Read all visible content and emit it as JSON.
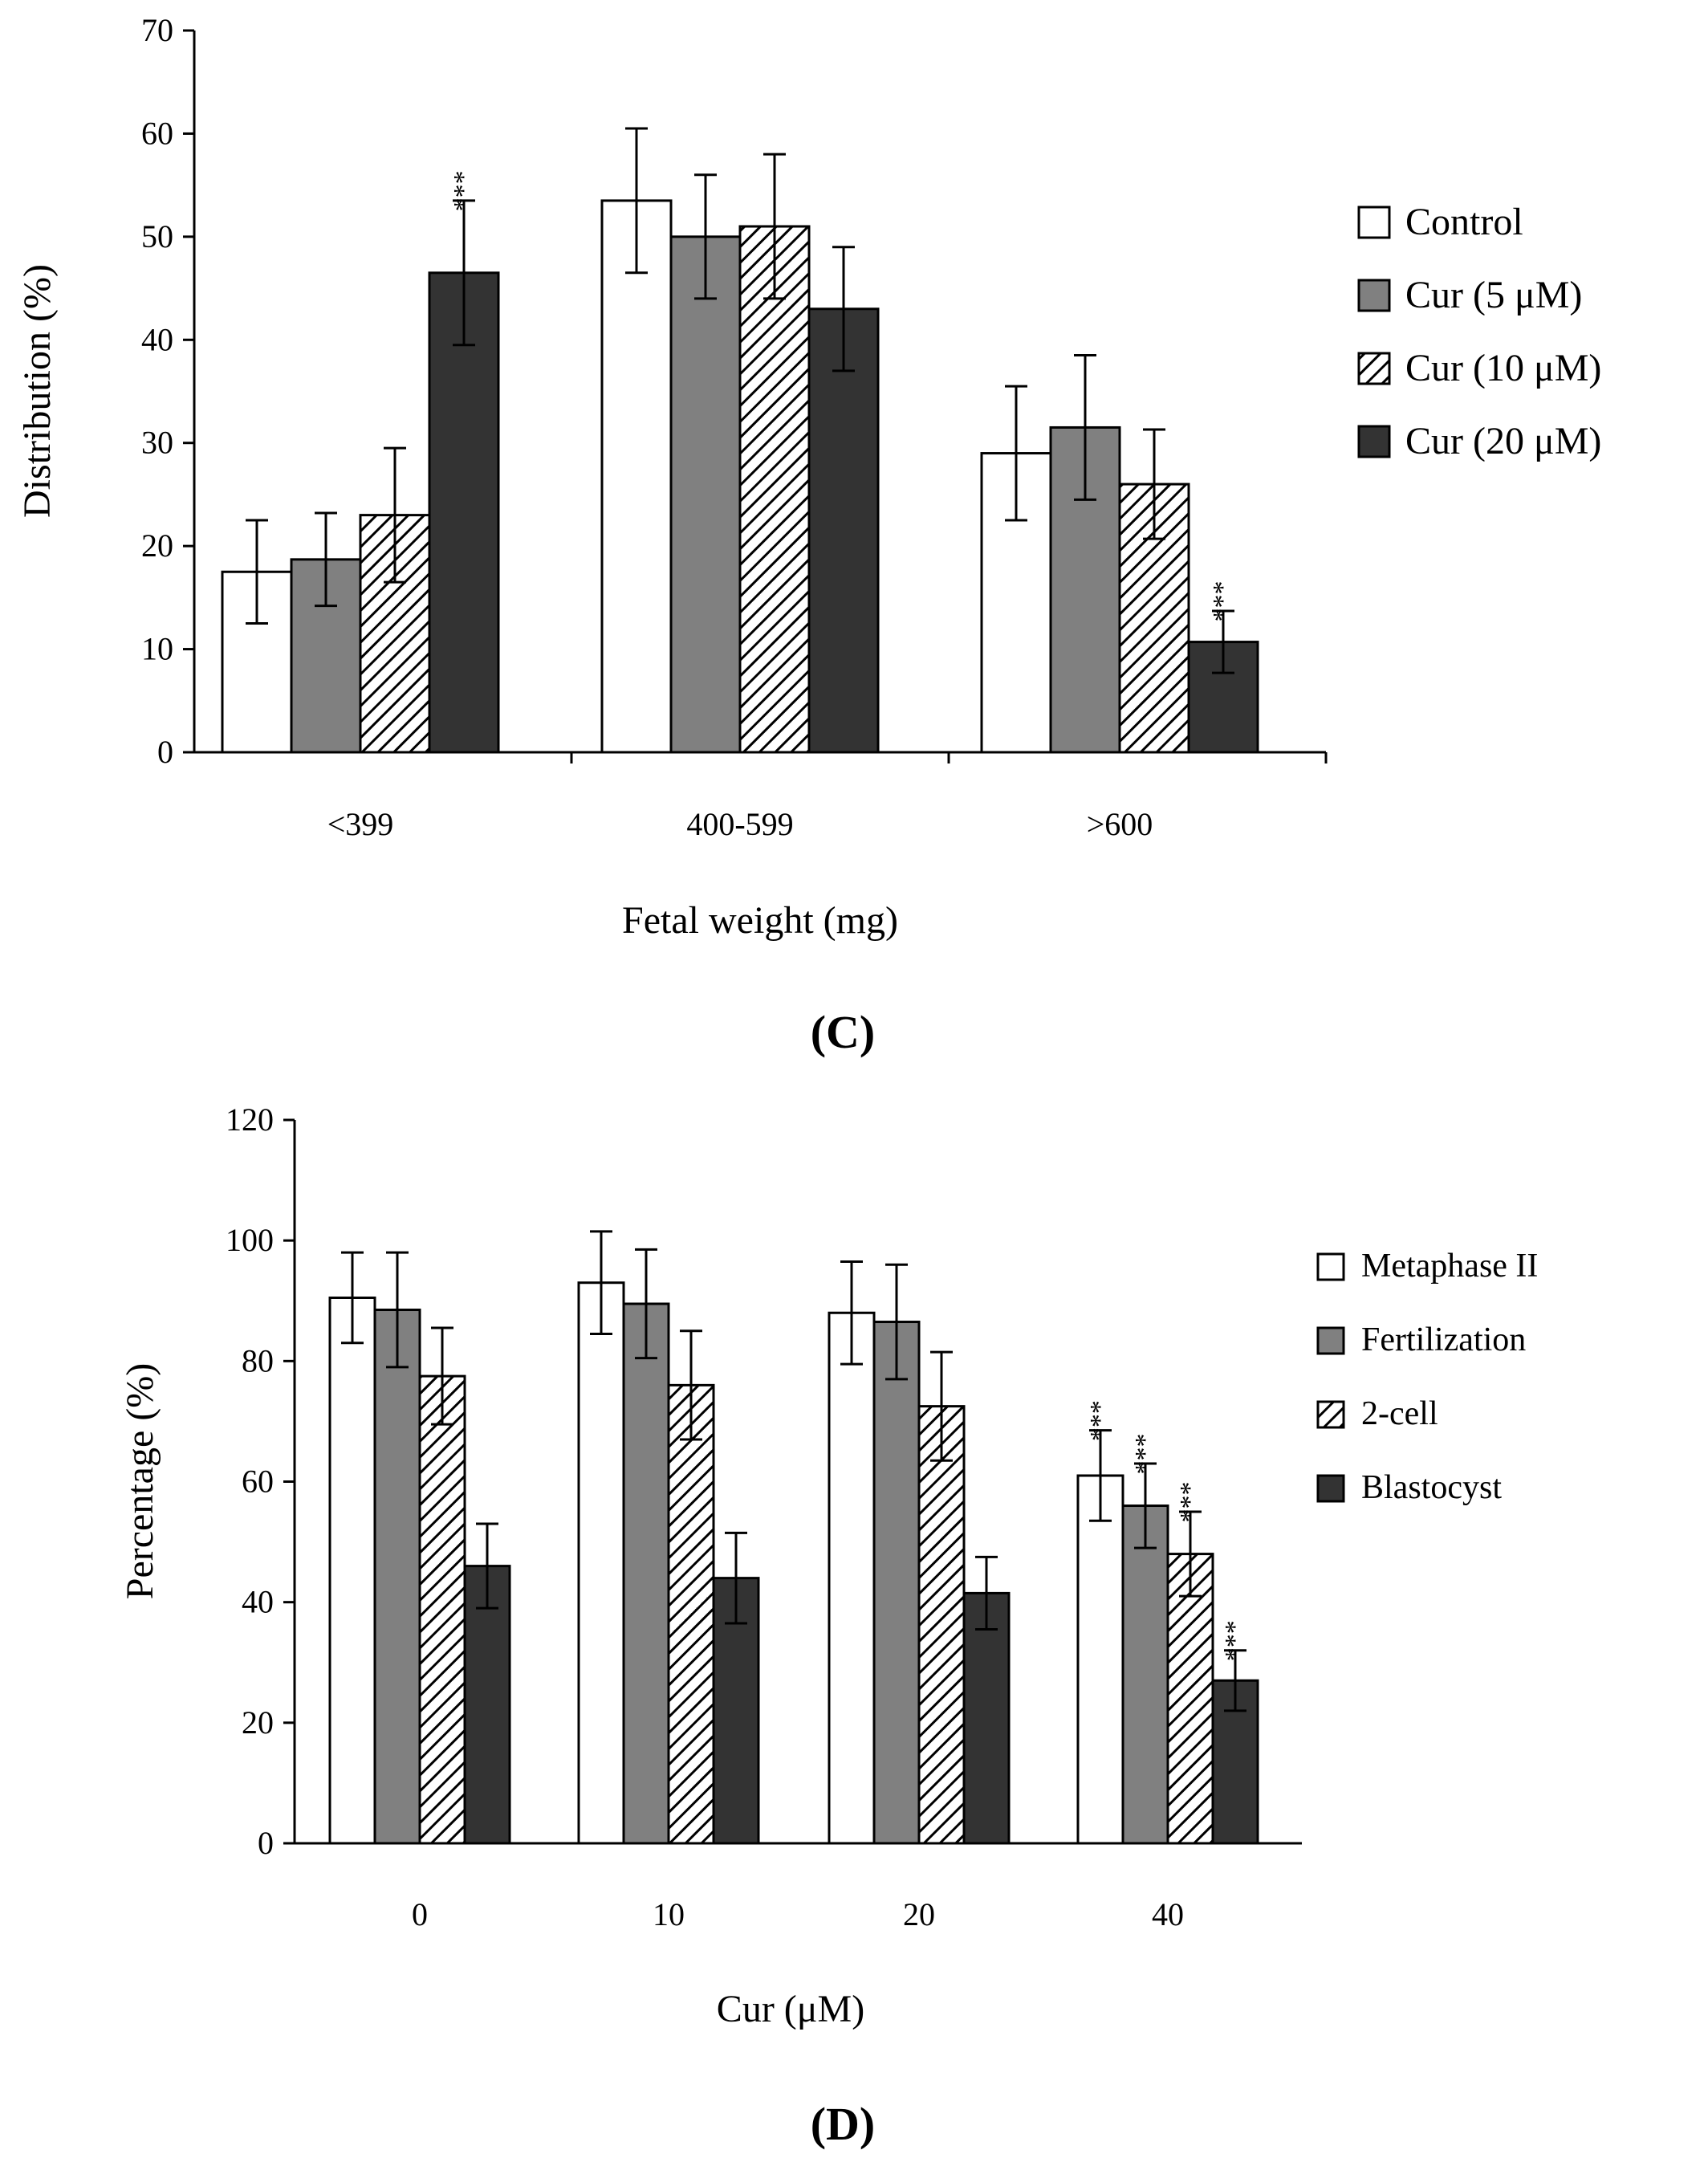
{
  "chart_data": [
    {
      "type": "bar",
      "panel_label": "(C)",
      "xlabel": "Fetal weight (mg)",
      "ylabel": "Distribution (%)",
      "ylim": [
        0,
        70
      ],
      "yticks": [
        0,
        10,
        20,
        30,
        40,
        50,
        60,
        70
      ],
      "categories": [
        "<399",
        "400-599",
        ">600"
      ],
      "legend_position": "right",
      "series": [
        {
          "name": "Control",
          "legend": "Control",
          "fill": "#ffffff",
          "pattern": "none",
          "values": [
            17.5,
            53.5,
            29
          ],
          "errors": [
            5,
            7,
            6.5
          ],
          "significance": [
            "",
            "",
            ""
          ]
        },
        {
          "name": "Cur (5 μM)",
          "legend": "Cur  (5 μM)",
          "fill": "#808080",
          "pattern": "none",
          "values": [
            18.7,
            50,
            31.5
          ],
          "errors": [
            4.5,
            6,
            7
          ],
          "significance": [
            "",
            "",
            ""
          ]
        },
        {
          "name": "Cur (10 μM)",
          "legend": "Cur  (10 μM)",
          "fill": "#ffffff",
          "pattern": "hatch",
          "values": [
            23,
            51,
            26
          ],
          "errors": [
            6.5,
            7,
            5.3
          ],
          "significance": [
            "",
            "",
            ""
          ]
        },
        {
          "name": "Cur (20 μM)",
          "legend": "Cur  (20 μM)",
          "fill": "#333333",
          "pattern": "none",
          "values": [
            46.5,
            43,
            10.7
          ],
          "errors": [
            7,
            6,
            3
          ],
          "significance": [
            "***",
            "",
            "***"
          ]
        }
      ]
    },
    {
      "type": "bar",
      "panel_label": "(D)",
      "xlabel": "Cur (μM)",
      "ylabel": "Percentage (%)",
      "ylim": [
        0,
        120
      ],
      "yticks": [
        0,
        20,
        40,
        60,
        80,
        100,
        120
      ],
      "categories": [
        "0",
        "10",
        "20",
        "40"
      ],
      "legend_position": "right",
      "series": [
        {
          "name": "Metaphase II",
          "legend": "Metaphase II",
          "fill": "#ffffff",
          "pattern": "none",
          "values": [
            90.5,
            93,
            88,
            61
          ],
          "errors": [
            7.5,
            8.5,
            8.5,
            7.5
          ],
          "significance": [
            "",
            "",
            "",
            "***"
          ]
        },
        {
          "name": "Fertilization",
          "legend": "Fertilization",
          "fill": "#808080",
          "pattern": "none",
          "values": [
            88.5,
            89.5,
            86.5,
            56
          ],
          "errors": [
            9.5,
            9,
            9.5,
            7
          ],
          "significance": [
            "",
            "",
            "",
            "***"
          ]
        },
        {
          "name": "2-cell",
          "legend": "2-cell",
          "fill": "#ffffff",
          "pattern": "hatch",
          "values": [
            77.5,
            76,
            72.5,
            48
          ],
          "errors": [
            8,
            9,
            9,
            7
          ],
          "significance": [
            "",
            "",
            "",
            "***"
          ]
        },
        {
          "name": "Blastocyst",
          "legend": "Blastocyst",
          "fill": "#333333",
          "pattern": "none",
          "values": [
            46,
            44,
            41.5,
            27
          ],
          "errors": [
            7,
            7.5,
            6,
            5
          ],
          "significance": [
            "",
            "",
            "",
            "***"
          ]
        }
      ]
    }
  ]
}
